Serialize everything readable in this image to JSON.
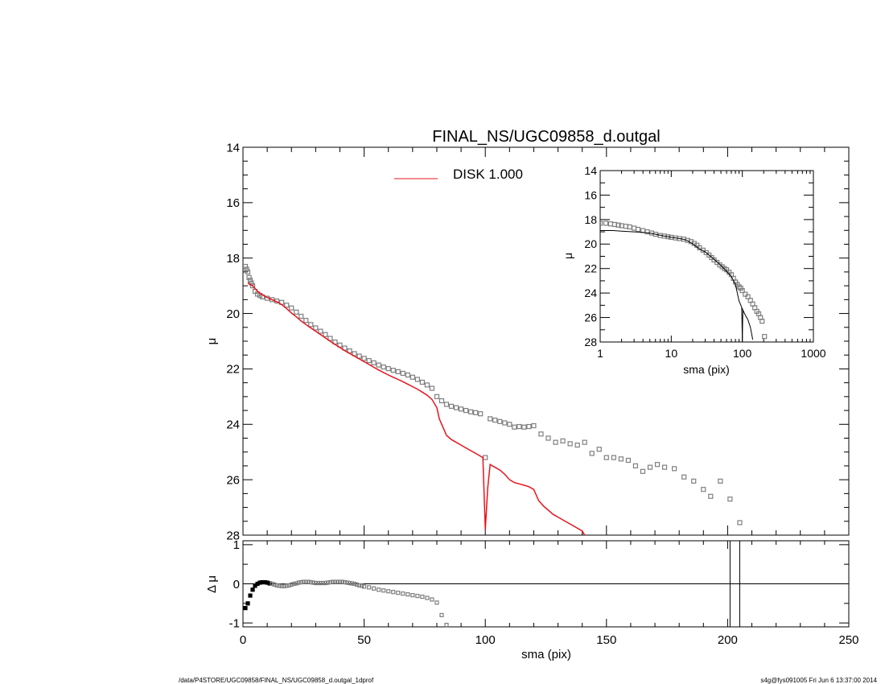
{
  "title": "FINAL_NS/UGC09858_d.outgal",
  "footer_left": "/data/P4STORE/UGC09858/FINAL_NS/UGC09858_d.outgal_1dprof",
  "footer_right": "s4g@fys091005  Fri Jun  6 13:37:00 2014",
  "colors": {
    "model": "#e8141c",
    "data": "#7f7f7f",
    "axes": "#000000"
  },
  "chart_data": [
    {
      "panel": "main",
      "type": "scatter",
      "title": "FINAL_NS/UGC09858_d.outgal",
      "ylabel": "μ",
      "xlim": [
        0,
        250
      ],
      "ylim": [
        28,
        14
      ],
      "y_inverted": true,
      "yticks": [
        "14",
        "16",
        "18",
        "20",
        "22",
        "24",
        "26",
        "28"
      ],
      "legend": {
        "position": "top-center",
        "entries": [
          {
            "label": "DISK  1.000",
            "color": "#e8141c"
          }
        ]
      },
      "series": [
        {
          "kind": "points",
          "marker": "open-square",
          "x": [
            1.0,
            1.5,
            2.0,
            2.5,
            3.0,
            3.5,
            4.0,
            5.0,
            6.0,
            7.0,
            8.0,
            10.0,
            12.0,
            14.0,
            16.0,
            18.0,
            20.0,
            22.0,
            24.0,
            26.0,
            28.0,
            30.0,
            32.0,
            34.0,
            36.0,
            38.0,
            40.0,
            42.0,
            44.0,
            46.0,
            48.0,
            50.0,
            52.0,
            54.0,
            56.0,
            58.0,
            60.0,
            62.0,
            64.0,
            66.0,
            68.0,
            70.0,
            72.0,
            74.0,
            76.0,
            78.0,
            80.0,
            82.0,
            84.0,
            86.0,
            88.0,
            90.0,
            92.0,
            94.0,
            96.0,
            98.0,
            100.0,
            102.0,
            104.0,
            106.0,
            108.0,
            110.0,
            112.0,
            114.0,
            116.0,
            118.0,
            120.0,
            123.0,
            126.0,
            129.0,
            132.0,
            135.0,
            138.0,
            141.0,
            144.0,
            147.0,
            150.0,
            153.0,
            156.0,
            159.0,
            162.0,
            165.0,
            168.0,
            171.0,
            174.0,
            178.0,
            182.0,
            186.0,
            190.0,
            193.0,
            197.0,
            201.0,
            205.0
          ],
          "y": [
            18.3,
            18.4,
            18.5,
            18.7,
            18.8,
            18.9,
            19.0,
            19.2,
            19.3,
            19.35,
            19.4,
            19.45,
            19.5,
            19.55,
            19.6,
            19.7,
            19.8,
            19.95,
            20.1,
            20.25,
            20.4,
            20.52,
            20.64,
            20.76,
            20.9,
            21.03,
            21.14,
            21.25,
            21.35,
            21.45,
            21.54,
            21.62,
            21.7,
            21.78,
            21.86,
            21.93,
            21.99,
            22.05,
            22.1,
            22.16,
            22.22,
            22.3,
            22.38,
            22.48,
            22.58,
            22.7,
            23.0,
            23.15,
            23.28,
            23.35,
            23.4,
            23.45,
            23.5,
            23.55,
            23.58,
            23.62,
            25.2,
            23.8,
            23.85,
            23.9,
            23.95,
            24.0,
            24.1,
            24.08,
            24.1,
            24.08,
            24.05,
            24.35,
            24.5,
            24.65,
            24.6,
            24.7,
            24.75,
            24.65,
            25.05,
            24.9,
            25.2,
            25.2,
            25.25,
            25.3,
            25.5,
            25.7,
            25.55,
            25.45,
            25.55,
            25.6,
            25.9,
            26.05,
            26.35,
            26.6,
            26.05,
            26.7,
            27.55
          ]
        },
        {
          "kind": "line",
          "name": "DISK  1.000",
          "x": [
            2,
            4,
            6,
            8,
            10,
            12,
            14,
            16,
            18,
            20,
            22,
            24,
            26,
            28,
            30,
            32,
            34,
            36,
            38,
            40,
            42,
            44,
            46,
            48,
            50,
            52,
            54,
            56,
            58,
            60,
            62,
            64,
            66,
            68,
            70,
            72,
            74,
            76,
            78,
            80,
            81,
            82,
            84,
            86,
            88,
            90,
            92,
            94,
            96,
            98,
            99,
            100,
            101,
            102,
            104,
            106,
            108,
            110,
            112,
            114,
            116,
            118,
            120,
            122,
            124,
            126,
            128,
            130,
            132,
            134,
            136,
            138,
            140,
            141
          ],
          "y": [
            18.9,
            19.0,
            19.2,
            19.32,
            19.42,
            19.5,
            19.58,
            19.68,
            19.82,
            19.98,
            20.12,
            20.27,
            20.4,
            20.52,
            20.64,
            20.76,
            20.88,
            21.0,
            21.12,
            21.23,
            21.34,
            21.44,
            21.54,
            21.64,
            21.74,
            21.84,
            21.94,
            22.04,
            22.13,
            22.22,
            22.3,
            22.38,
            22.46,
            22.55,
            22.64,
            22.73,
            22.84,
            22.95,
            23.1,
            23.4,
            23.8,
            24.0,
            24.4,
            24.55,
            24.65,
            24.75,
            24.85,
            24.95,
            25.05,
            25.15,
            25.2,
            27.8,
            26.3,
            25.45,
            25.55,
            25.65,
            25.8,
            26.0,
            26.1,
            26.15,
            26.2,
            26.25,
            26.35,
            26.75,
            26.95,
            27.1,
            27.25,
            27.35,
            27.45,
            27.55,
            27.65,
            27.75,
            27.85,
            28.0
          ]
        }
      ]
    },
    {
      "panel": "residual",
      "type": "scatter",
      "xlabel": "sma (pix)",
      "ylabel": "Δ μ",
      "xlim": [
        0,
        250
      ],
      "ylim": [
        -1.1,
        1.1
      ],
      "xticks": [
        "0",
        "50",
        "100",
        "150",
        "200",
        "250"
      ],
      "yticks": [
        "1",
        "0",
        "-1"
      ],
      "reference_line_y": 0,
      "vertical_lines_x": [
        201,
        205
      ],
      "series": [
        {
          "kind": "points",
          "marker": "open-square",
          "x": [
            1.0,
            2.0,
            3.0,
            4.0,
            5.0,
            6.0,
            7.0,
            8.0,
            9.0,
            10.0,
            11.0,
            12.0,
            13.0,
            14.0,
            15.0,
            16.0,
            17.0,
            18.0,
            19.0,
            20.0,
            21.0,
            22.0,
            23.0,
            24.0,
            25.0,
            26.0,
            27.0,
            28.0,
            29.0,
            30.0,
            31.0,
            32.0,
            33.0,
            34.0,
            35.0,
            36.0,
            37.0,
            38.0,
            39.0,
            40.0,
            41.0,
            42.0,
            43.0,
            44.0,
            45.0,
            46.0,
            47.0,
            48.0,
            49.0,
            50.0,
            52.0,
            54.0,
            56.0,
            58.0,
            60.0,
            62.0,
            64.0,
            66.0,
            68.0,
            70.0,
            72.0,
            74.0,
            76.0,
            78.0,
            80.0,
            82.0,
            84.0
          ],
          "y": [
            -0.62,
            -0.5,
            -0.3,
            -0.15,
            -0.05,
            0.0,
            0.03,
            0.04,
            0.04,
            0.03,
            0.01,
            0.0,
            -0.02,
            -0.04,
            -0.05,
            -0.06,
            -0.06,
            -0.05,
            -0.04,
            -0.02,
            0.0,
            0.01,
            0.03,
            0.04,
            0.05,
            0.05,
            0.05,
            0.04,
            0.03,
            0.02,
            0.02,
            0.02,
            0.02,
            0.02,
            0.03,
            0.04,
            0.05,
            0.05,
            0.05,
            0.05,
            0.05,
            0.04,
            0.03,
            0.02,
            0.01,
            0.0,
            -0.02,
            -0.04,
            -0.05,
            -0.07,
            -0.09,
            -0.12,
            -0.15,
            -0.17,
            -0.19,
            -0.21,
            -0.23,
            -0.25,
            -0.27,
            -0.29,
            -0.31,
            -0.33,
            -0.36,
            -0.4,
            -0.48,
            -0.8,
            -1.05
          ]
        }
      ]
    },
    {
      "panel": "inset",
      "type": "scatter",
      "xlabel": "sma (pix)",
      "ylabel": "μ",
      "xscale": "log",
      "xlim": [
        1,
        1000
      ],
      "ylim": [
        28,
        14
      ],
      "y_inverted": true,
      "xticks": [
        "1",
        "10",
        "100",
        "1000"
      ],
      "yticks": [
        "14",
        "16",
        "18",
        "20",
        "22",
        "24",
        "26",
        "28"
      ],
      "series": [
        {
          "kind": "points",
          "marker": "open-square",
          "x": [
            1.0,
            1.2,
            1.4,
            1.6,
            1.8,
            2.0,
            2.3,
            2.6,
            3.0,
            3.4,
            4.0,
            4.6,
            5.3,
            6.0,
            7.0,
            8.0,
            9.0,
            10.0,
            11.5,
            13.0,
            15.0,
            17.0,
            19.0,
            21.0,
            23.0,
            25.0,
            28.0,
            31.0,
            34.0,
            37.0,
            40.0,
            44.0,
            48.0,
            52.0,
            56.0,
            60.0,
            65.0,
            70.0,
            75.0,
            80.0,
            85.0,
            90.0,
            95.0,
            100.0,
            110.0,
            120.0,
            130.0,
            140.0,
            150.0,
            160.0,
            170.0,
            180.0,
            190.0,
            205.0
          ],
          "y": [
            18.3,
            18.3,
            18.35,
            18.4,
            18.45,
            18.5,
            18.55,
            18.6,
            18.7,
            18.8,
            18.9,
            19.0,
            19.1,
            19.2,
            19.3,
            19.35,
            19.4,
            19.45,
            19.5,
            19.55,
            19.6,
            19.7,
            19.8,
            19.95,
            20.1,
            20.3,
            20.5,
            20.7,
            20.9,
            21.1,
            21.3,
            21.5,
            21.7,
            21.85,
            22.0,
            22.1,
            22.3,
            22.5,
            22.8,
            23.1,
            23.3,
            23.5,
            23.6,
            23.8,
            24.1,
            24.3,
            24.6,
            24.9,
            25.2,
            25.5,
            25.7,
            26.0,
            26.3,
            27.55
          ]
        },
        {
          "kind": "line",
          "x": [
            1.0,
            1.5,
            2.0,
            3.0,
            4.0,
            5.0,
            6.0,
            8.0,
            10.0,
            13.0,
            16.0,
            20.0,
            25.0,
            30.0,
            40.0,
            50.0,
            60.0,
            70.0,
            80.0,
            90.0,
            100.0,
            110.0,
            120.0,
            130.0,
            140.0
          ],
          "y": [
            18.9,
            18.9,
            18.95,
            19.0,
            19.05,
            19.1,
            19.2,
            19.35,
            19.45,
            19.55,
            19.65,
            19.98,
            20.4,
            20.64,
            21.23,
            21.74,
            22.22,
            22.64,
            23.3,
            24.65,
            25.3,
            25.8,
            26.2,
            26.8,
            27.8
          ]
        },
        {
          "kind": "line",
          "x": [
            98.0,
            99.0,
            100.0,
            101.0,
            102.0
          ],
          "y": [
            25.2,
            26.5,
            28.0,
            26.5,
            25.4
          ]
        }
      ]
    }
  ]
}
